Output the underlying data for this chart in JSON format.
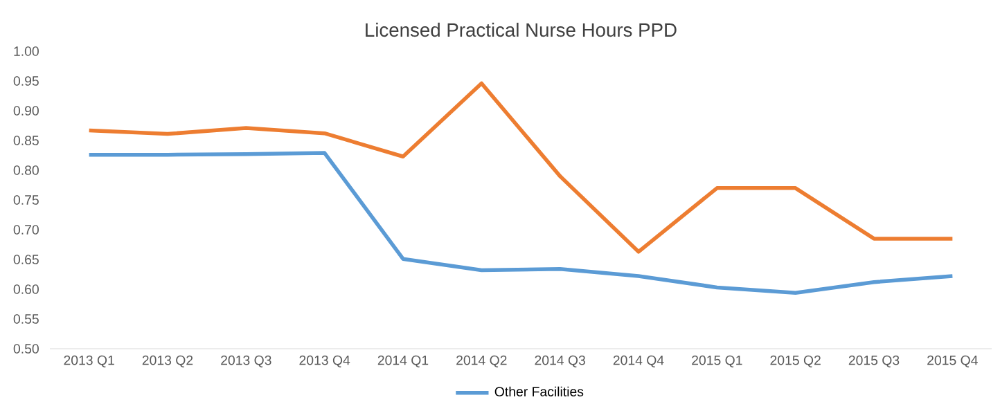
{
  "chart_data": {
    "type": "line",
    "title": "Licensed Practical Nurse Hours PPD",
    "categories": [
      "2013 Q1",
      "2013 Q2",
      "2013 Q3",
      "2013 Q4",
      "2014 Q1",
      "2014 Q2",
      "2014 Q3",
      "2014 Q4",
      "2015 Q1",
      "2015 Q2",
      "2015 Q3",
      "2015 Q4"
    ],
    "series": [
      {
        "name": "Other Facilities",
        "color": "#5b9bd5",
        "values": [
          0.826,
          0.826,
          0.827,
          0.829,
          0.651,
          0.632,
          0.634,
          0.622,
          0.603,
          0.594,
          0.612,
          0.622
        ]
      },
      {
        "color": "#ed7d31",
        "values": [
          0.867,
          0.861,
          0.871,
          0.862,
          0.823,
          0.946,
          0.79,
          0.663,
          0.77,
          0.77,
          0.685,
          0.685
        ]
      }
    ],
    "ylim": [
      0.5,
      1.0
    ],
    "yticks": [
      {
        "value": 0.5,
        "label": "0.50"
      },
      {
        "value": 0.55,
        "label": "0.55"
      },
      {
        "value": 0.6,
        "label": "0.60"
      },
      {
        "value": 0.65,
        "label": "0.65"
      },
      {
        "value": 0.7,
        "label": "0.70"
      },
      {
        "value": 0.75,
        "label": "0.75"
      },
      {
        "value": 0.8,
        "label": "0.80"
      },
      {
        "value": 0.85,
        "label": "0.85"
      },
      {
        "value": 0.9,
        "label": "0.90"
      },
      {
        "value": 0.95,
        "label": "0.95"
      },
      {
        "value": 1.0,
        "label": "1.00"
      }
    ],
    "grid": false,
    "legend": "bottom",
    "marker": "none",
    "line_style": "solid"
  }
}
